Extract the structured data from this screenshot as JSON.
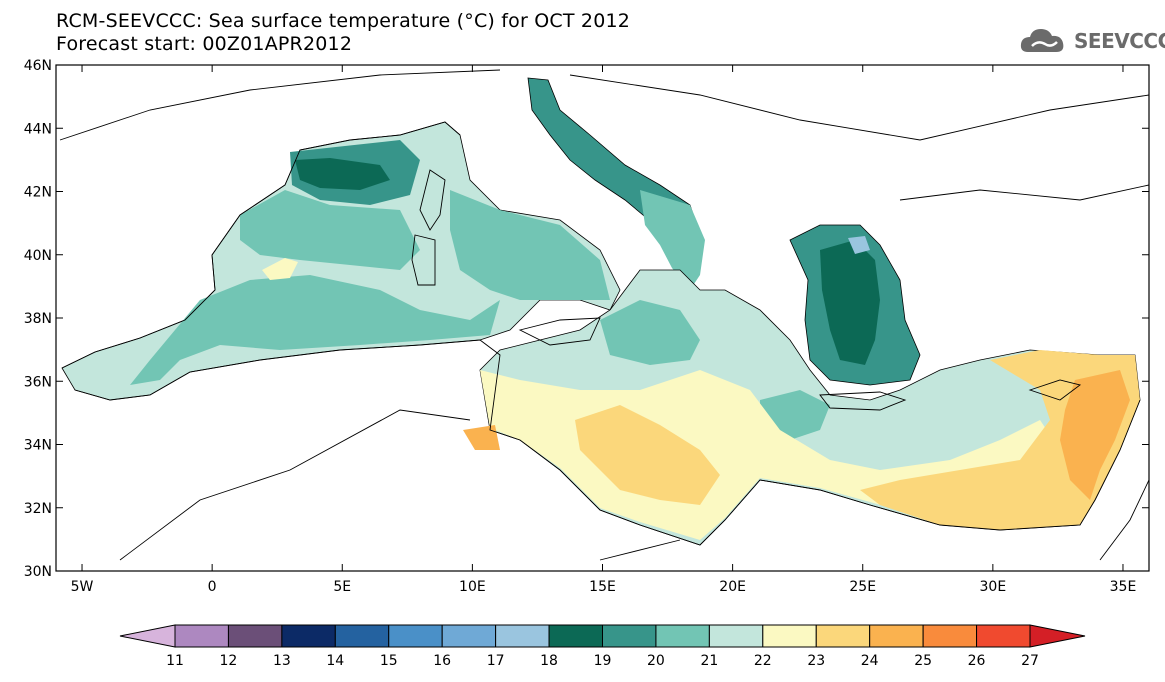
{
  "title_line1": "RCM-SEEVCCC: Sea surface temperature (°C) for OCT 2012",
  "title_line2": "Forecast start: 00Z01APR2012",
  "logo": {
    "text": "SEEVCCC",
    "icon": "cloud-icon",
    "color": "#6b6b6b"
  },
  "map": {
    "lat_labels": [
      "46N",
      "44N",
      "42N",
      "40N",
      "38N",
      "36N",
      "34N",
      "32N",
      "30N"
    ],
    "lon_labels": [
      "5W",
      "0",
      "5E",
      "10E",
      "15E",
      "20E",
      "25E",
      "30E",
      "35E"
    ],
    "lat_range": [
      30,
      46
    ],
    "lon_range": [
      -6,
      36
    ]
  },
  "colorbar": {
    "labels": [
      "11",
      "12",
      "13",
      "14",
      "15",
      "16",
      "17",
      "18",
      "19",
      "20",
      "21",
      "22",
      "23",
      "24",
      "25",
      "26",
      "27"
    ],
    "colors": [
      "#d7b4dc",
      "#ad88c0",
      "#6b4f78",
      "#0c2a66",
      "#2462a0",
      "#4a90c8",
      "#6fa9d6",
      "#9ac5df",
      "#0c6955",
      "#37958a",
      "#72c5b4",
      "#c3e6dc",
      "#fbf9c2",
      "#fbd77b",
      "#fab24f",
      "#f98b3c",
      "#f04a2f",
      "#d41f26"
    ]
  }
}
